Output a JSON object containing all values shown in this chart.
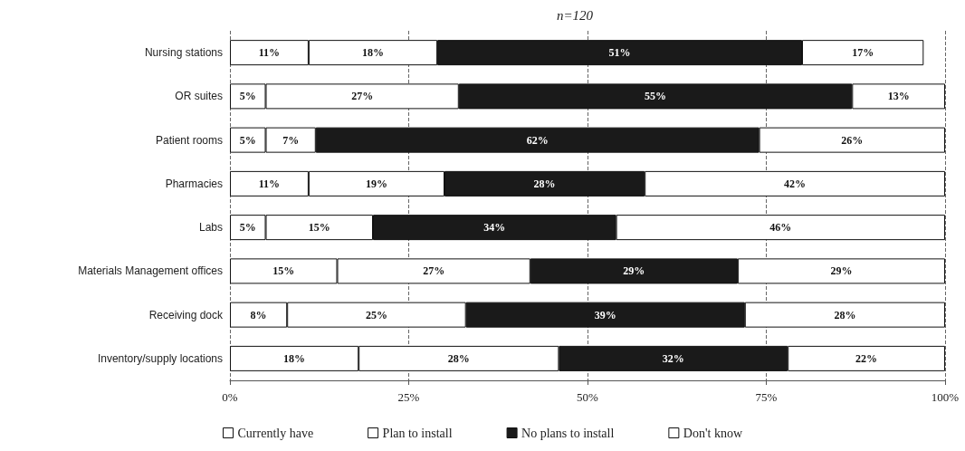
{
  "chart_data": {
    "type": "bar",
    "title": "n=120",
    "orientation": "horizontal",
    "stacked": true,
    "categories": [
      "Nursing stations",
      "OR suites",
      "Patient rooms",
      "Pharmacies",
      "Labs",
      "Materials Management offices",
      "Receiving dock",
      "Inventory/supply locations"
    ],
    "series": [
      {
        "name": "Currently have",
        "color": "#ffffff",
        "values": [
          11,
          5,
          5,
          11,
          5,
          15,
          8,
          18
        ],
        "value_labels": [
          "11%",
          "5%",
          "5%",
          "11%",
          "5%",
          "15%",
          "8%",
          "18%"
        ]
      },
      {
        "name": "Plan to install",
        "color": "#ffffff",
        "values": [
          18,
          27,
          7,
          19,
          15,
          27,
          25,
          28
        ],
        "value_labels": [
          "18%",
          "27%",
          "7%",
          "19%",
          "15%",
          "27%",
          "25%",
          "28%"
        ]
      },
      {
        "name": "No plans to install",
        "color": "#1a1a1a",
        "values": [
          51,
          55,
          62,
          28,
          34,
          29,
          39,
          32
        ],
        "value_labels": [
          "51%",
          "55%",
          "62%",
          "28%",
          "34%",
          "29%",
          "39%",
          "32%"
        ]
      },
      {
        "name": "Don't know",
        "color": "#ffffff",
        "values": [
          17,
          13,
          26,
          42,
          46,
          29,
          28,
          22
        ],
        "value_labels": [
          "17%",
          "13%",
          "26%",
          "42%",
          "46%",
          "29%",
          "28%",
          "22%"
        ]
      }
    ],
    "xlim": [
      0,
      100
    ],
    "xticks": [
      {
        "value": 0,
        "label": "0%"
      },
      {
        "value": 25,
        "label": "25%"
      },
      {
        "value": 50,
        "label": "50%"
      },
      {
        "value": 75,
        "label": "75%"
      },
      {
        "value": 100,
        "label": "100%"
      }
    ],
    "grid": "x",
    "legend": "bottom"
  }
}
